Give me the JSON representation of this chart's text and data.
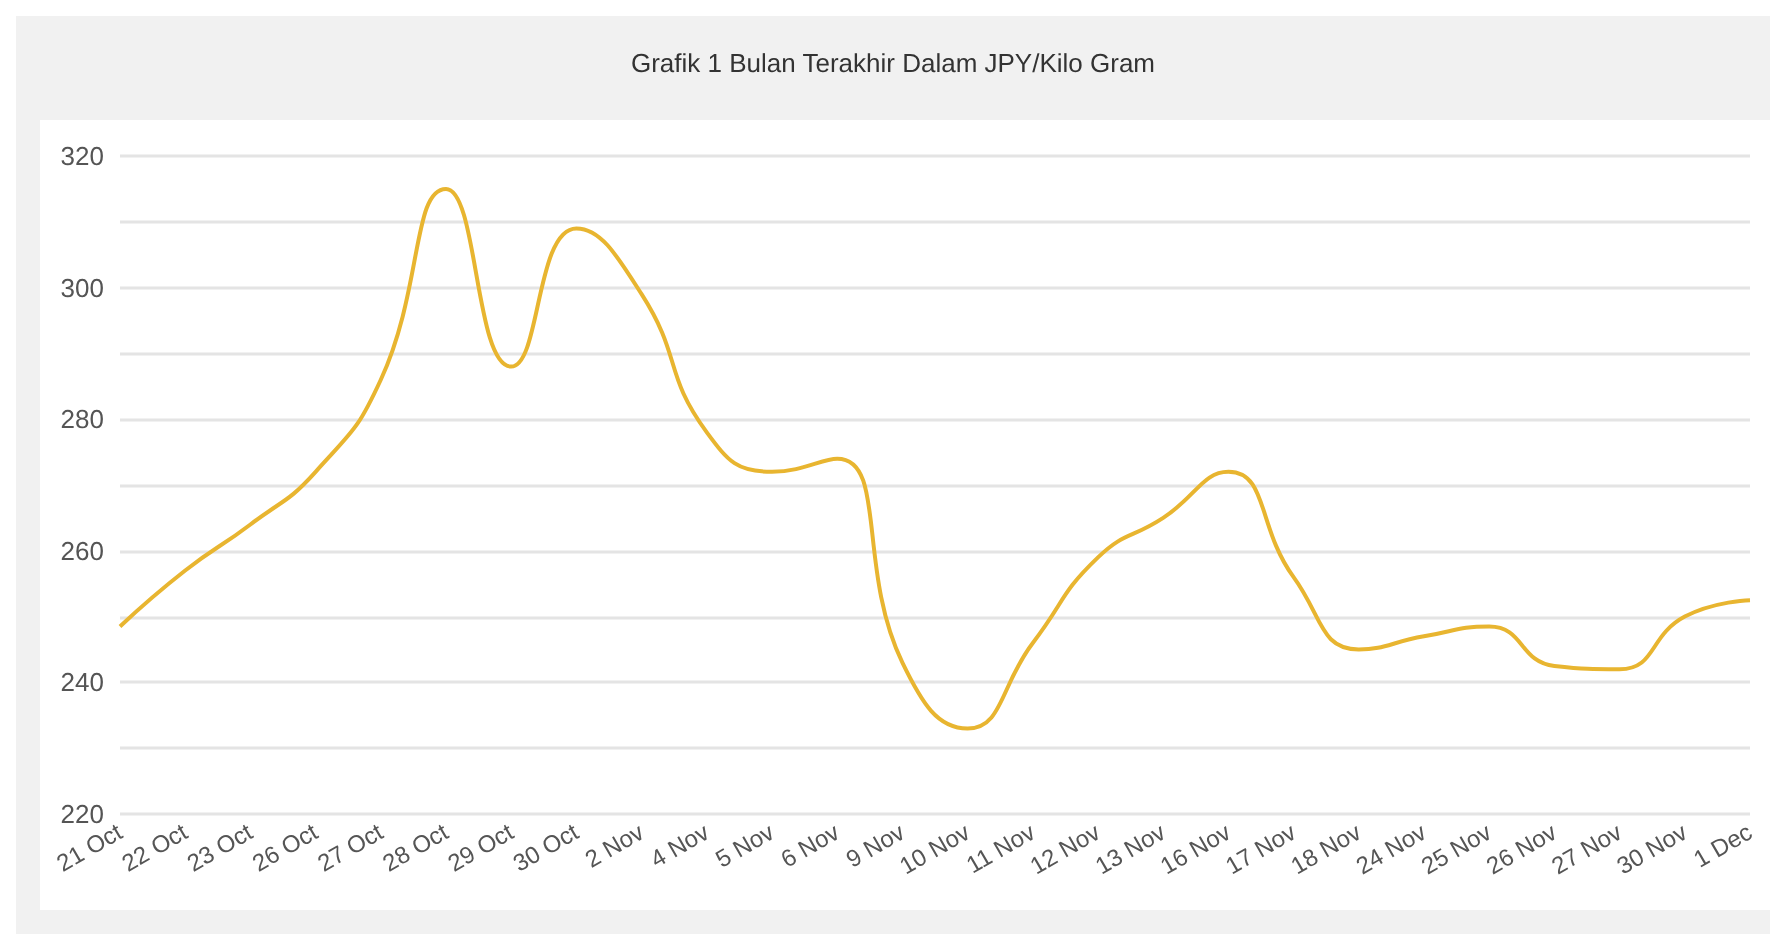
{
  "chart_data": {
    "type": "line",
    "title": "Grafik 1 Bulan Terakhir Dalam JPY/Kilo Gram",
    "categories": [
      "21 Oct",
      "22 Oct",
      "23 Oct",
      "26 Oct",
      "27 Oct",
      "28 Oct",
      "29 Oct",
      "30 Oct",
      "2 Nov",
      "4 Nov",
      "5 Nov",
      "6 Nov",
      "9 Nov",
      "10 Nov",
      "11 Nov",
      "12 Nov",
      "13 Nov",
      "16 Nov",
      "17 Nov",
      "18 Nov",
      "24 Nov",
      "25 Nov",
      "26 Nov",
      "27 Nov",
      "30 Nov",
      "1 Dec"
    ],
    "series": [
      {
        "color": "#e8b530",
        "values": [
          248.5,
          257,
          264,
          272,
          286,
          315,
          288,
          309,
          299,
          278,
          272,
          274,
          243,
          233,
          246,
          259,
          265,
          272,
          256,
          245,
          247,
          248.5,
          242.5,
          242,
          250,
          252.5
        ]
      }
    ],
    "ylim": [
      220,
      320
    ],
    "yticks": [
      220,
      {
        "value": 230,
        "label": null
      },
      240,
      {
        "value": 250,
        "label": null
      },
      260,
      {
        "value": 270,
        "label": null
      },
      280,
      {
        "value": 290,
        "label": null
      },
      300,
      {
        "value": 310,
        "label": null
      },
      320
    ],
    "grid": "y",
    "marker": "none",
    "line_style": "solid"
  }
}
